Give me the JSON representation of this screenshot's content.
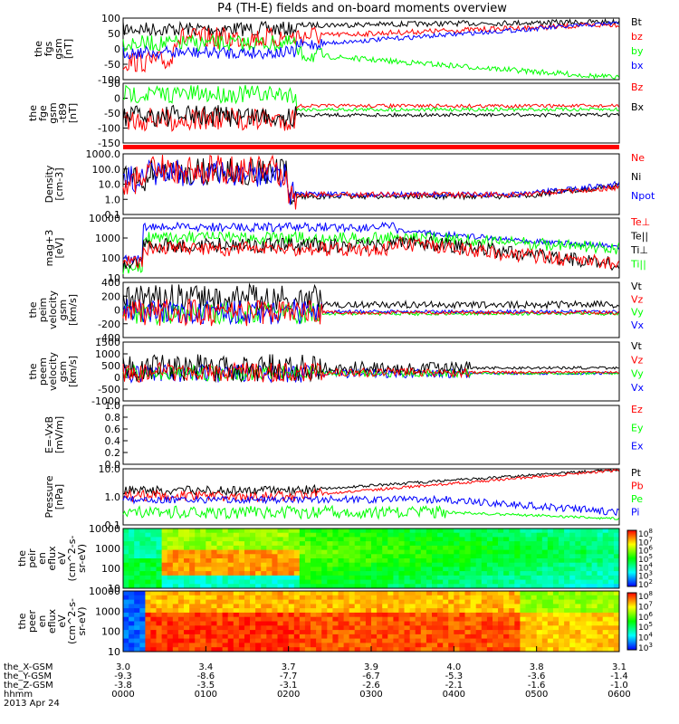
{
  "title": "P4 (TH-E) fields and on-board moments overview",
  "colors": {
    "black": "#000000",
    "red": "#ff0000",
    "green": "#00ff00",
    "blue": "#0000ff"
  },
  "chart_data": [
    {
      "id": "p1",
      "type": "line",
      "ylabel": [
        "the",
        "fgs",
        "gsm",
        "[nT]"
      ],
      "yticks": [
        "100",
        "50",
        "0",
        "-50",
        "-100"
      ],
      "series": [
        {
          "name": "Bt",
          "color": "black"
        },
        {
          "name": "bz",
          "color": "red"
        },
        {
          "name": "by",
          "color": "green"
        },
        {
          "name": "bx",
          "color": "blue"
        }
      ]
    },
    {
      "id": "p2",
      "type": "line",
      "ylabel": [
        "the",
        "fge",
        "gsm",
        "-t89",
        "[nT]"
      ],
      "yticks": [
        "50",
        "0",
        "-50",
        "-100",
        "-150"
      ],
      "series": [
        {
          "name": "Bz",
          "color": "red"
        },
        {
          "name": "Bx",
          "color": "black"
        }
      ]
    },
    {
      "id": "p3",
      "type": "line",
      "ylabel": [
        "Density",
        "[cm-3]"
      ],
      "yticks": [
        "1000.0",
        "100.0",
        "10.0",
        "1.0",
        "0.1"
      ],
      "yscale": "log",
      "series": [
        {
          "name": "Ne",
          "color": "red"
        },
        {
          "name": "Ni",
          "color": "black"
        },
        {
          "name": "Npot",
          "color": "blue"
        }
      ]
    },
    {
      "id": "p4",
      "type": "line",
      "ylabel": [
        "mag+3",
        "[eV]"
      ],
      "yticks": [
        "10000",
        "1000",
        "100",
        "10"
      ],
      "yscale": "log",
      "series": [
        {
          "name": "Te⊥",
          "color": "red"
        },
        {
          "name": "Te||",
          "color": "black"
        },
        {
          "name": "Ti⊥",
          "color": "black"
        },
        {
          "name": "Ti||",
          "color": "green"
        }
      ]
    },
    {
      "id": "p5",
      "type": "line",
      "ylabel": [
        "the",
        "peim",
        "velocity",
        "gsm",
        "[km/s]"
      ],
      "yticks": [
        "400",
        "200",
        "0",
        "-200",
        "-400"
      ],
      "series": [
        {
          "name": "Vt",
          "color": "black"
        },
        {
          "name": "Vz",
          "color": "red"
        },
        {
          "name": "Vy",
          "color": "green"
        },
        {
          "name": "Vx",
          "color": "blue"
        }
      ]
    },
    {
      "id": "p6",
      "type": "line",
      "ylabel": [
        "the",
        "peem",
        "velocity",
        "gsm",
        "[km/s]"
      ],
      "yticks": [
        "1500",
        "1000",
        "500",
        "0",
        "-500",
        "-1000"
      ],
      "series": [
        {
          "name": "Vt",
          "color": "black"
        },
        {
          "name": "Vz",
          "color": "red"
        },
        {
          "name": "Vy",
          "color": "green"
        },
        {
          "name": "Vx",
          "color": "blue"
        }
      ]
    },
    {
      "id": "p7",
      "type": "line",
      "ylabel": [
        "E=-VxB",
        "[mV/m]"
      ],
      "yticks": [
        "1.0",
        "0.8",
        "0.6",
        "0.4",
        "0.2",
        "0.0"
      ],
      "series": [
        {
          "name": "Ez",
          "color": "red"
        },
        {
          "name": "Ey",
          "color": "green"
        },
        {
          "name": "Ex",
          "color": "blue"
        }
      ]
    },
    {
      "id": "p8",
      "type": "line",
      "ylabel": [
        "Pressure",
        "[nPa]"
      ],
      "yticks": [
        "10.0",
        "1.0",
        "0.1"
      ],
      "yscale": "log",
      "series": [
        {
          "name": "Pt",
          "color": "black"
        },
        {
          "name": "Pb",
          "color": "red"
        },
        {
          "name": "Pe",
          "color": "green"
        },
        {
          "name": "Pi",
          "color": "blue"
        }
      ]
    },
    {
      "id": "p9",
      "type": "heatmap",
      "ylabel": [
        "the",
        "peir",
        "en",
        "eflux",
        "eV",
        "(cm^2-s-",
        "sr-eV)"
      ],
      "yticks": [
        "10000",
        "1000",
        "100",
        "10"
      ],
      "colorbar": [
        "10^8",
        "10^7",
        "10^6",
        "10^5",
        "10^4",
        "10^3",
        "10^2"
      ]
    },
    {
      "id": "p10",
      "type": "heatmap",
      "ylabel": [
        "the",
        "peer",
        "en",
        "eflux",
        "eV",
        "(cm^2-s-",
        "sr-eV)"
      ],
      "yticks": [
        "10000",
        "1000",
        "100",
        "10"
      ],
      "colorbar": [
        "10^8",
        "10^7",
        "10^6",
        "10^5",
        "10^4",
        "10^3"
      ]
    }
  ],
  "xaxis": {
    "rows": [
      {
        "label": "the_X-GSM",
        "values": [
          "3.0",
          "3.4",
          "3.7",
          "3.9",
          "4.0",
          "3.8",
          "3.1"
        ]
      },
      {
        "label": "the_Y-GSM",
        "values": [
          "-9.3",
          "-8.6",
          "-7.7",
          "-6.7",
          "-5.3",
          "-3.6",
          "-1.4"
        ]
      },
      {
        "label": "the_Z-GSM",
        "values": [
          "-3.8",
          "-3.5",
          "-3.1",
          "-2.6",
          "-2.1",
          "-1.6",
          "-1.0"
        ]
      },
      {
        "label": "hhmm",
        "values": [
          "0000",
          "0100",
          "0200",
          "0300",
          "0400",
          "0500",
          "0600"
        ]
      }
    ],
    "date": "2013 Apr 24"
  }
}
